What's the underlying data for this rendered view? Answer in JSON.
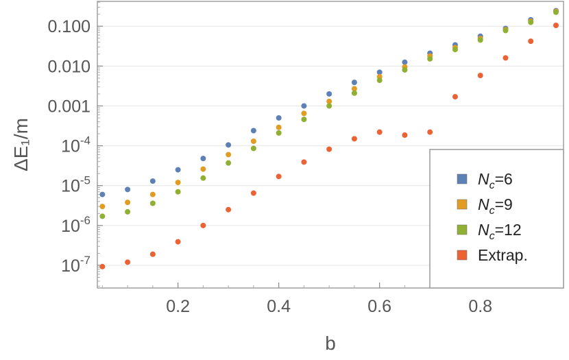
{
  "chart_data": {
    "type": "scatter",
    "xlabel": "b",
    "ylabel": "ΔE₁/m",
    "x_scale": "linear",
    "y_scale": "log",
    "xlim": [
      0.04,
      0.965
    ],
    "ylim": [
      2.7e-08,
      0.42
    ],
    "x_ticks": [
      {
        "value": 0.2,
        "label": "0.2"
      },
      {
        "value": 0.4,
        "label": "0.4"
      },
      {
        "value": 0.6,
        "label": "0.6"
      },
      {
        "value": 0.8,
        "label": "0.8"
      }
    ],
    "y_ticks": [
      {
        "value": 1e-07,
        "label": "10",
        "exp": "-7"
      },
      {
        "value": 1e-06,
        "label": "10",
        "exp": "-6"
      },
      {
        "value": 1e-05,
        "label": "10",
        "exp": "-5"
      },
      {
        "value": 0.0001,
        "label": "10",
        "exp": "-4"
      },
      {
        "value": 0.001,
        "label": "0.001",
        "exp": ""
      },
      {
        "value": 0.01,
        "label": "0.010",
        "exp": ""
      },
      {
        "value": 0.1,
        "label": "0.100",
        "exp": ""
      }
    ],
    "grid": "horizontal",
    "legend_position": "bottom-right",
    "x": [
      0.05,
      0.1,
      0.15,
      0.2,
      0.25,
      0.3,
      0.35,
      0.4,
      0.45,
      0.5,
      0.55,
      0.6,
      0.65,
      0.7,
      0.75,
      0.8,
      0.85,
      0.9,
      0.95
    ],
    "series": [
      {
        "name": "N_c=6",
        "legend_base": "N",
        "legend_sub": "c",
        "legend_rest": "=6",
        "color": "#5E81B5",
        "values": [
          6e-06,
          8e-06,
          1.3e-05,
          2.5e-05,
          4.8e-05,
          0.000105,
          0.00024,
          0.0005,
          0.001,
          0.002,
          0.0039,
          0.007,
          0.0125,
          0.021,
          0.034,
          0.056,
          0.088,
          0.145,
          0.245
        ]
      },
      {
        "name": "N_c=9",
        "legend_base": "N",
        "legend_sub": "c",
        "legend_rest": "=9",
        "color": "#E19C24",
        "values": [
          3e-06,
          3.8e-06,
          6e-06,
          1.2e-05,
          2.6e-05,
          6e-05,
          0.00013,
          0.00029,
          0.00065,
          0.0013,
          0.0027,
          0.0054,
          0.0095,
          0.0178,
          0.029,
          0.049,
          0.082,
          0.133,
          0.235
        ]
      },
      {
        "name": "N_c=12",
        "legend_base": "N",
        "legend_sub": "c",
        "legend_rest": "=12",
        "color": "#8FB032",
        "values": [
          1.7e-06,
          2.2e-06,
          3.6e-06,
          7e-06,
          1.55e-05,
          3.7e-05,
          8.6e-05,
          0.00021,
          0.00046,
          0.001,
          0.0021,
          0.0044,
          0.008,
          0.0152,
          0.026,
          0.045,
          0.078,
          0.125,
          0.225
        ]
      },
      {
        "name": "Extrap.",
        "legend_base": "Extrap.",
        "legend_sub": "",
        "legend_rest": "",
        "color": "#EB6235",
        "values": [
          9.3e-08,
          1.2e-07,
          1.9e-07,
          3.9e-07,
          1e-06,
          2.5e-06,
          6.5e-06,
          1.7e-05,
          3.9e-05,
          8.2e-05,
          0.00015,
          0.00022,
          0.000185,
          0.00022,
          0.0017,
          0.0058,
          0.016,
          0.042,
          0.105
        ]
      }
    ]
  }
}
